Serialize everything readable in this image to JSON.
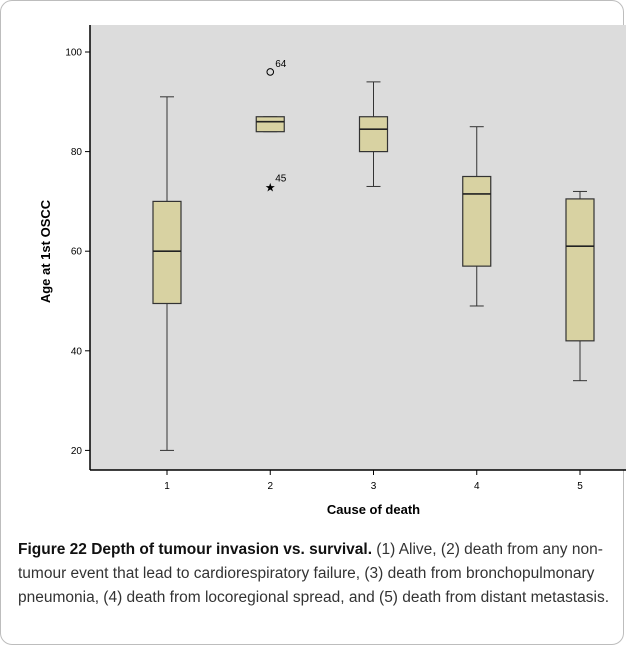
{
  "figure": {
    "caption_title": "Figure 22 Depth of tumour invasion vs. survival.",
    "caption_text": " (1) Alive, (2) death from any non-tumour event that lead to cardiorespiratory failure, (3) death from bronchopulmonary pneumonia, (4) death from locoregional spread, and (5) death from distant metastasis."
  },
  "chart_data": {
    "type": "boxplot",
    "title": "",
    "xlabel": "Cause of death",
    "ylabel": "Age at 1st OSCC",
    "categories": [
      "1",
      "2",
      "3",
      "4",
      "5"
    ],
    "ylim": [
      15,
      105
    ],
    "yticks": [
      20,
      40,
      60,
      80,
      100
    ],
    "boxes": [
      {
        "category": "1",
        "min": 20,
        "q1": 49.5,
        "median": 60,
        "q3": 70,
        "max": 91
      },
      {
        "category": "2",
        "min": 84,
        "q1": 84,
        "median": 86,
        "q3": 87,
        "max": 87
      },
      {
        "category": "3",
        "min": 73,
        "q1": 80,
        "median": 84.5,
        "q3": 87,
        "max": 94
      },
      {
        "category": "4",
        "min": 49,
        "q1": 57,
        "median": 71.5,
        "q3": 75,
        "max": 85
      },
      {
        "category": "5",
        "min": 34,
        "q1": 42,
        "median": 61,
        "q3": 70.5,
        "max": 72
      }
    ],
    "outliers": [
      {
        "category": "2",
        "value": 96,
        "marker": "circle",
        "label": "64"
      },
      {
        "category": "2",
        "value": 73,
        "marker": "star",
        "label": "45"
      }
    ],
    "colors": {
      "plot_background": "#dcdcdc",
      "box_fill": "#d8d2a2",
      "box_stroke": "#333333"
    },
    "grid": false
  }
}
